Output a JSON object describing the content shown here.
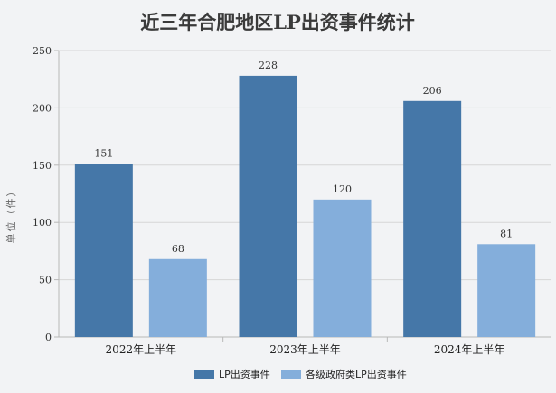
{
  "chart_data": {
    "type": "bar",
    "title": "近三年合肥地区LP出资事件统计",
    "ylabel": "单位（件）",
    "xlabel": "",
    "categories": [
      "2022年上半年",
      "2023年上半年",
      "2024年上半年"
    ],
    "series": [
      {
        "name": "LP出资事件",
        "values": [
          151,
          228,
          206
        ],
        "color": "#4577a8"
      },
      {
        "name": "各级政府类LP出资事件",
        "values": [
          68,
          120,
          81
        ],
        "color": "#84aedb"
      }
    ],
    "ylim": [
      0,
      250
    ],
    "yticks": [
      0,
      50,
      100,
      150,
      200,
      250
    ],
    "grid": true,
    "legend": "bottom",
    "data_labels": true
  }
}
